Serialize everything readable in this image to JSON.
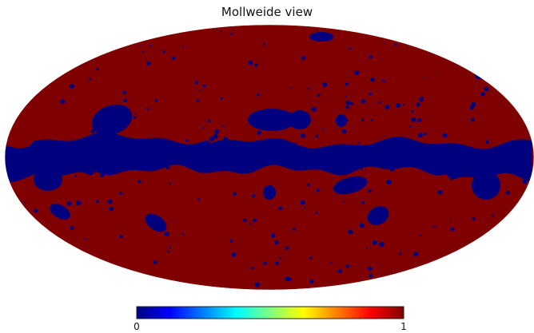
{
  "chart_data": {
    "type": "heatmap",
    "projection": "Mollweide",
    "title": "Mollweide view",
    "colormap": "jet",
    "value_range": [
      0,
      1
    ],
    "values_present": [
      0,
      1
    ],
    "colorbar": {
      "min_label": "0",
      "max_label": "1",
      "stops": [
        "#00007f",
        "#0000ff",
        "#007fff",
        "#00ffff",
        "#7fff7f",
        "#ffff00",
        "#ff7f00",
        "#ff0000",
        "#7f0000"
      ]
    },
    "mask": {
      "description_value_0": "galactic plane band and scattered masked patches",
      "background_value": 1
    },
    "colors": {
      "value_1": "#7f0000",
      "value_0": "#00007f"
    }
  }
}
